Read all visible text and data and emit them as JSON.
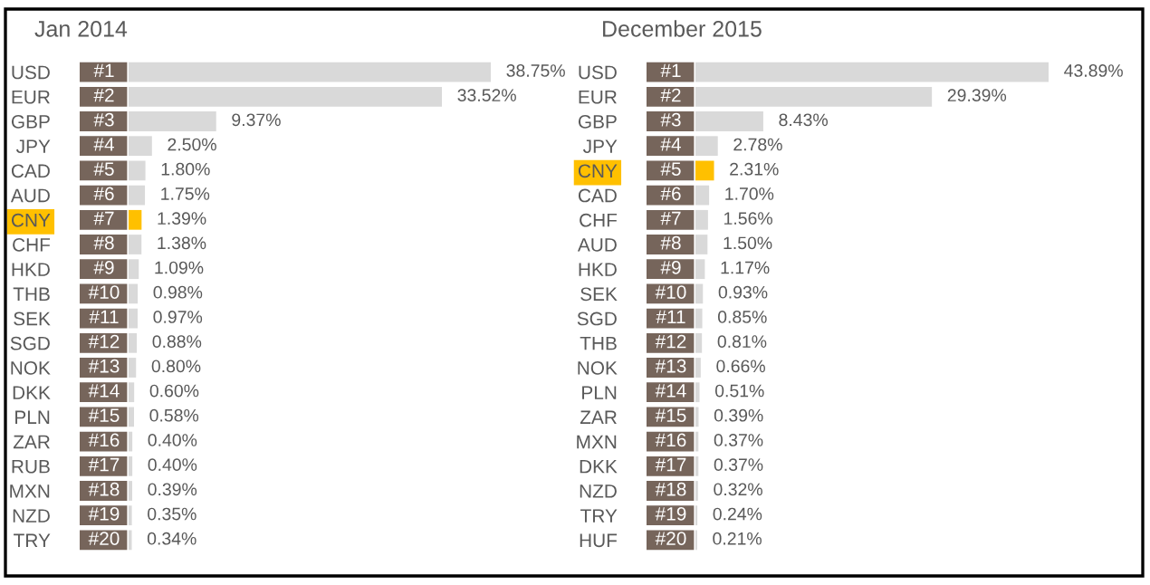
{
  "chart_data": [
    {
      "type": "bar",
      "orientation": "horizontal",
      "title": "Jan 2014",
      "color": "#d9d9d9",
      "categories": [
        "USD",
        "EUR",
        "GBP",
        "JPY",
        "CAD",
        "AUD",
        "CNY",
        "CHF",
        "HKD",
        "THB",
        "SEK",
        "SGD",
        "NOK",
        "DKK",
        "PLN",
        "ZAR",
        "RUB",
        "MXN",
        "NZD",
        "TRY"
      ],
      "values": [
        38.75,
        33.52,
        9.37,
        2.5,
        1.8,
        1.75,
        1.39,
        1.38,
        1.09,
        0.98,
        0.97,
        0.88,
        0.8,
        0.6,
        0.58,
        0.4,
        0.4,
        0.39,
        0.35,
        0.34
      ],
      "colors": [
        "#d9d9d9",
        "#d9d9d9",
        "#d9d9d9",
        "#d9d9d9",
        "#d9d9d9",
        "#d9d9d9",
        "#ffc000",
        "#d9d9d9",
        "#d9d9d9",
        "#d9d9d9",
        "#d9d9d9",
        "#d9d9d9",
        "#d9d9d9",
        "#d9d9d9",
        "#d9d9d9",
        "#d9d9d9",
        "#d9d9d9",
        "#d9d9d9",
        "#d9d9d9",
        "#d9d9d9"
      ],
      "value_labels": [
        "38.75%",
        "33.52%",
        "9.37%",
        "2.50%",
        "1.80%",
        "1.75%",
        "1.39%",
        "1.38%",
        "1.09%",
        "0.98%",
        "0.97%",
        "0.88%",
        "0.80%",
        "0.60%",
        "0.58%",
        "0.40%",
        "0.40%",
        "0.39%",
        "0.35%",
        "0.34%"
      ],
      "annotations": [
        {
          "text": "#1",
          "y": "USD"
        },
        {
          "text": "#2",
          "y": "EUR"
        },
        {
          "text": "#3",
          "y": "GBP"
        },
        {
          "text": "#4",
          "y": "JPY"
        },
        {
          "text": "#5",
          "y": "CAD"
        },
        {
          "text": "#6",
          "y": "AUD"
        },
        {
          "text": "#7",
          "y": "CNY"
        },
        {
          "text": "#8",
          "y": "CHF"
        },
        {
          "text": "#9",
          "y": "HKD"
        },
        {
          "text": "#10",
          "y": "THB"
        },
        {
          "text": "#11",
          "y": "SEK"
        },
        {
          "text": "#12",
          "y": "SGD"
        },
        {
          "text": "#13",
          "y": "NOK"
        },
        {
          "text": "#14",
          "y": "DKK"
        },
        {
          "text": "#15",
          "y": "PLN"
        },
        {
          "text": "#16",
          "y": "ZAR"
        },
        {
          "text": "#17",
          "y": "RUB"
        },
        {
          "text": "#18",
          "y": "MXN"
        },
        {
          "text": "#19",
          "y": "NZD"
        },
        {
          "text": "#20",
          "y": "TRY"
        }
      ]
    },
    {
      "type": "bar",
      "orientation": "horizontal",
      "title": "December 2015",
      "color": "#d9d9d9",
      "categories": [
        "USD",
        "EUR",
        "GBP",
        "JPY",
        "CNY",
        "CAD",
        "CHF",
        "AUD",
        "HKD",
        "SEK",
        "SGD",
        "THB",
        "NOK",
        "PLN",
        "ZAR",
        "MXN",
        "DKK",
        "NZD",
        "TRY",
        "HUF"
      ],
      "values": [
        43.89,
        29.39,
        8.43,
        2.78,
        2.31,
        1.7,
        1.56,
        1.5,
        1.17,
        0.93,
        0.85,
        0.81,
        0.66,
        0.51,
        0.39,
        0.37,
        0.37,
        0.32,
        0.24,
        0.21
      ],
      "colors": [
        "#d9d9d9",
        "#d9d9d9",
        "#d9d9d9",
        "#d9d9d9",
        "#ffc000",
        "#d9d9d9",
        "#d9d9d9",
        "#d9d9d9",
        "#d9d9d9",
        "#d9d9d9",
        "#d9d9d9",
        "#d9d9d9",
        "#d9d9d9",
        "#d9d9d9",
        "#d9d9d9",
        "#d9d9d9",
        "#d9d9d9",
        "#d9d9d9",
        "#d9d9d9",
        "#d9d9d9"
      ],
      "value_labels": [
        "43.89%",
        "29.39%",
        "8.43%",
        "2.78%",
        "2.31%",
        "1.70%",
        "1.56%",
        "1.50%",
        "1.17%",
        "0.93%",
        "0.85%",
        "0.81%",
        "0.66%",
        "0.51%",
        "0.39%",
        "0.37%",
        "0.37%",
        "0.32%",
        "0.24%",
        "0.21%"
      ],
      "annotations": [
        {
          "text": "#1",
          "y": "USD"
        },
        {
          "text": "#2",
          "y": "EUR"
        },
        {
          "text": "#3",
          "y": "GBP"
        },
        {
          "text": "#4",
          "y": "JPY"
        },
        {
          "text": "#5",
          "y": "CNY"
        },
        {
          "text": "#6",
          "y": "CAD"
        },
        {
          "text": "#7",
          "y": "CHF"
        },
        {
          "text": "#8",
          "y": "AUD"
        },
        {
          "text": "#9",
          "y": "HKD"
        },
        {
          "text": "#10",
          "y": "SEK"
        },
        {
          "text": "#11",
          "y": "SGD"
        },
        {
          "text": "#12",
          "y": "THB"
        },
        {
          "text": "#13",
          "y": "NOK"
        },
        {
          "text": "#14",
          "y": "PLN"
        },
        {
          "text": "#15",
          "y": "ZAR"
        },
        {
          "text": "#16",
          "y": "MXN"
        },
        {
          "text": "#17",
          "y": "DKK"
        },
        {
          "text": "#18",
          "y": "NZD"
        },
        {
          "text": "#19",
          "y": "TRY"
        },
        {
          "text": "#20",
          "y": "HUF"
        }
      ]
    }
  ]
}
